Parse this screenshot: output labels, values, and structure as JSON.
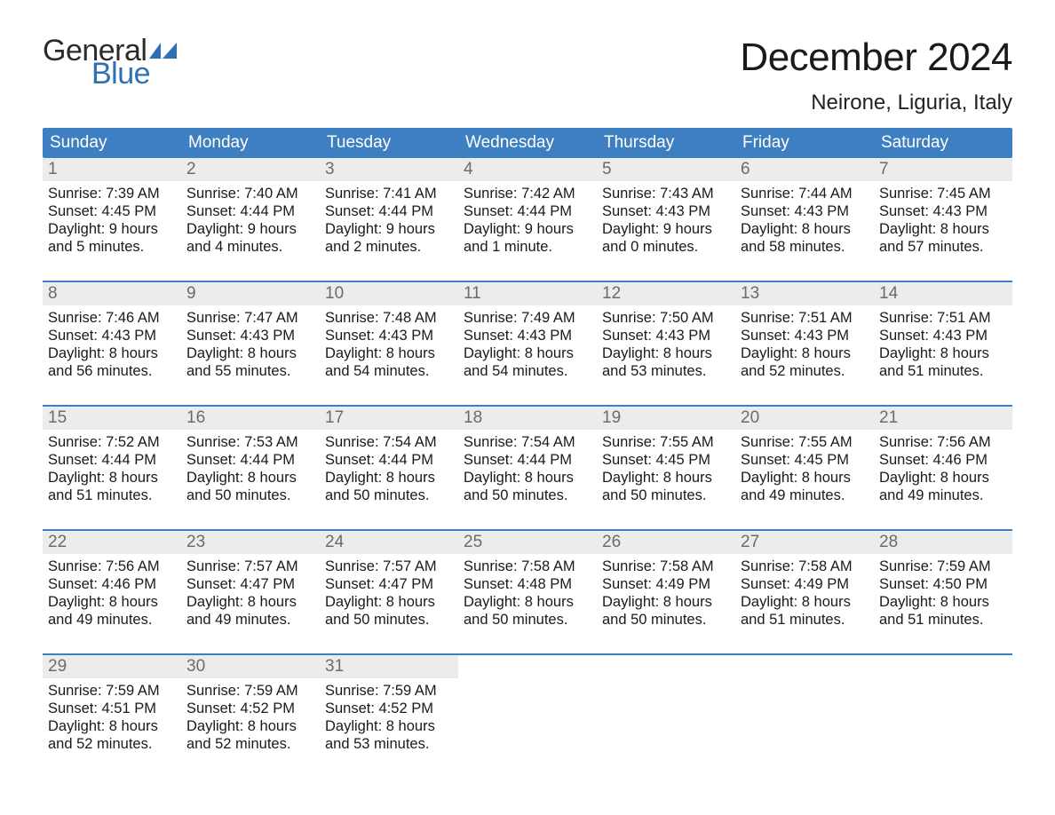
{
  "logo": {
    "word1": "General",
    "word2": "Blue",
    "color_dark": "#2b2b2b",
    "color_blue": "#2d70b3",
    "icon_color": "#2d70b3"
  },
  "title": "December 2024",
  "subtitle": "Neirone, Liguria, Italy",
  "colors": {
    "header_bg": "#3e7fc1",
    "header_text": "#ffffff",
    "daynum_bg": "#ececec",
    "daynum_text": "#6b6b6b",
    "week_border": "#3e7fc1",
    "body_text": "#1a1a1a",
    "page_bg": "#ffffff"
  },
  "font": {
    "family": "Arial, Helvetica, sans-serif",
    "title_size": 44,
    "subtitle_size": 24,
    "header_size": 19,
    "daynum_size": 19,
    "body_size": 16.5
  },
  "headers": [
    "Sunday",
    "Monday",
    "Tuesday",
    "Wednesday",
    "Thursday",
    "Friday",
    "Saturday"
  ],
  "weeks": [
    [
      {
        "n": "1",
        "sunrise": "7:39 AM",
        "sunset": "4:45 PM",
        "dl1": "Daylight: 9 hours",
        "dl2": "and 5 minutes."
      },
      {
        "n": "2",
        "sunrise": "7:40 AM",
        "sunset": "4:44 PM",
        "dl1": "Daylight: 9 hours",
        "dl2": "and 4 minutes."
      },
      {
        "n": "3",
        "sunrise": "7:41 AM",
        "sunset": "4:44 PM",
        "dl1": "Daylight: 9 hours",
        "dl2": "and 2 minutes."
      },
      {
        "n": "4",
        "sunrise": "7:42 AM",
        "sunset": "4:44 PM",
        "dl1": "Daylight: 9 hours",
        "dl2": "and 1 minute."
      },
      {
        "n": "5",
        "sunrise": "7:43 AM",
        "sunset": "4:43 PM",
        "dl1": "Daylight: 9 hours",
        "dl2": "and 0 minutes."
      },
      {
        "n": "6",
        "sunrise": "7:44 AM",
        "sunset": "4:43 PM",
        "dl1": "Daylight: 8 hours",
        "dl2": "and 58 minutes."
      },
      {
        "n": "7",
        "sunrise": "7:45 AM",
        "sunset": "4:43 PM",
        "dl1": "Daylight: 8 hours",
        "dl2": "and 57 minutes."
      }
    ],
    [
      {
        "n": "8",
        "sunrise": "7:46 AM",
        "sunset": "4:43 PM",
        "dl1": "Daylight: 8 hours",
        "dl2": "and 56 minutes."
      },
      {
        "n": "9",
        "sunrise": "7:47 AM",
        "sunset": "4:43 PM",
        "dl1": "Daylight: 8 hours",
        "dl2": "and 55 minutes."
      },
      {
        "n": "10",
        "sunrise": "7:48 AM",
        "sunset": "4:43 PM",
        "dl1": "Daylight: 8 hours",
        "dl2": "and 54 minutes."
      },
      {
        "n": "11",
        "sunrise": "7:49 AM",
        "sunset": "4:43 PM",
        "dl1": "Daylight: 8 hours",
        "dl2": "and 54 minutes."
      },
      {
        "n": "12",
        "sunrise": "7:50 AM",
        "sunset": "4:43 PM",
        "dl1": "Daylight: 8 hours",
        "dl2": "and 53 minutes."
      },
      {
        "n": "13",
        "sunrise": "7:51 AM",
        "sunset": "4:43 PM",
        "dl1": "Daylight: 8 hours",
        "dl2": "and 52 minutes."
      },
      {
        "n": "14",
        "sunrise": "7:51 AM",
        "sunset": "4:43 PM",
        "dl1": "Daylight: 8 hours",
        "dl2": "and 51 minutes."
      }
    ],
    [
      {
        "n": "15",
        "sunrise": "7:52 AM",
        "sunset": "4:44 PM",
        "dl1": "Daylight: 8 hours",
        "dl2": "and 51 minutes."
      },
      {
        "n": "16",
        "sunrise": "7:53 AM",
        "sunset": "4:44 PM",
        "dl1": "Daylight: 8 hours",
        "dl2": "and 50 minutes."
      },
      {
        "n": "17",
        "sunrise": "7:54 AM",
        "sunset": "4:44 PM",
        "dl1": "Daylight: 8 hours",
        "dl2": "and 50 minutes."
      },
      {
        "n": "18",
        "sunrise": "7:54 AM",
        "sunset": "4:44 PM",
        "dl1": "Daylight: 8 hours",
        "dl2": "and 50 minutes."
      },
      {
        "n": "19",
        "sunrise": "7:55 AM",
        "sunset": "4:45 PM",
        "dl1": "Daylight: 8 hours",
        "dl2": "and 50 minutes."
      },
      {
        "n": "20",
        "sunrise": "7:55 AM",
        "sunset": "4:45 PM",
        "dl1": "Daylight: 8 hours",
        "dl2": "and 49 minutes."
      },
      {
        "n": "21",
        "sunrise": "7:56 AM",
        "sunset": "4:46 PM",
        "dl1": "Daylight: 8 hours",
        "dl2": "and 49 minutes."
      }
    ],
    [
      {
        "n": "22",
        "sunrise": "7:56 AM",
        "sunset": "4:46 PM",
        "dl1": "Daylight: 8 hours",
        "dl2": "and 49 minutes."
      },
      {
        "n": "23",
        "sunrise": "7:57 AM",
        "sunset": "4:47 PM",
        "dl1": "Daylight: 8 hours",
        "dl2": "and 49 minutes."
      },
      {
        "n": "24",
        "sunrise": "7:57 AM",
        "sunset": "4:47 PM",
        "dl1": "Daylight: 8 hours",
        "dl2": "and 50 minutes."
      },
      {
        "n": "25",
        "sunrise": "7:58 AM",
        "sunset": "4:48 PM",
        "dl1": "Daylight: 8 hours",
        "dl2": "and 50 minutes."
      },
      {
        "n": "26",
        "sunrise": "7:58 AM",
        "sunset": "4:49 PM",
        "dl1": "Daylight: 8 hours",
        "dl2": "and 50 minutes."
      },
      {
        "n": "27",
        "sunrise": "7:58 AM",
        "sunset": "4:49 PM",
        "dl1": "Daylight: 8 hours",
        "dl2": "and 51 minutes."
      },
      {
        "n": "28",
        "sunrise": "7:59 AM",
        "sunset": "4:50 PM",
        "dl1": "Daylight: 8 hours",
        "dl2": "and 51 minutes."
      }
    ],
    [
      {
        "n": "29",
        "sunrise": "7:59 AM",
        "sunset": "4:51 PM",
        "dl1": "Daylight: 8 hours",
        "dl2": "and 52 minutes."
      },
      {
        "n": "30",
        "sunrise": "7:59 AM",
        "sunset": "4:52 PM",
        "dl1": "Daylight: 8 hours",
        "dl2": "and 52 minutes."
      },
      {
        "n": "31",
        "sunrise": "7:59 AM",
        "sunset": "4:52 PM",
        "dl1": "Daylight: 8 hours",
        "dl2": "and 53 minutes."
      },
      {
        "empty": true
      },
      {
        "empty": true
      },
      {
        "empty": true
      },
      {
        "empty": true
      }
    ]
  ]
}
